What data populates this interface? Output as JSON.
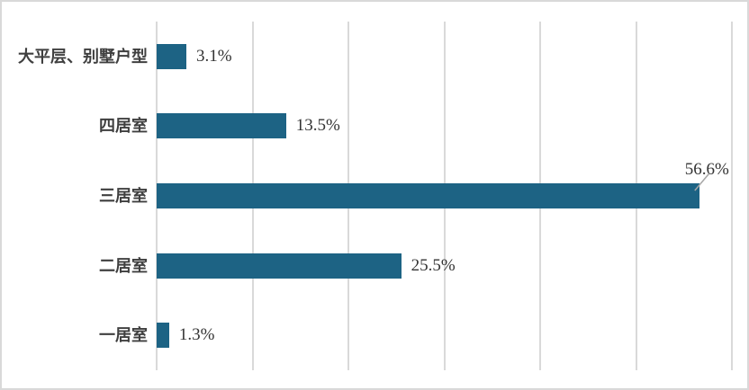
{
  "page": {
    "background": "#ffffff",
    "border_color": "#d9d9d9"
  },
  "chart_data": {
    "type": "bar",
    "orientation": "horizontal",
    "title": "",
    "xlabel": "",
    "ylabel": "",
    "categories": [
      "大平层、别墅户型",
      "四居室",
      "三居室",
      "二居室",
      "一居室"
    ],
    "values": [
      3.1,
      13.5,
      56.6,
      25.5,
      1.3
    ],
    "value_labels": [
      "3.1%",
      "13.5%",
      "56.6%",
      "25.5%",
      "1.3%"
    ],
    "xlim": [
      0,
      60
    ],
    "gridline_step": 10,
    "grid": true,
    "legend": false,
    "axis_tick_labels_visible": false,
    "bar_color": "#1d6384",
    "gridline_color": "#d9d9d9",
    "category_label_color": "#3f3f3f",
    "value_label_color": "#333333",
    "leader_line_color": "#a6a6a6",
    "callout_index": 2
  }
}
